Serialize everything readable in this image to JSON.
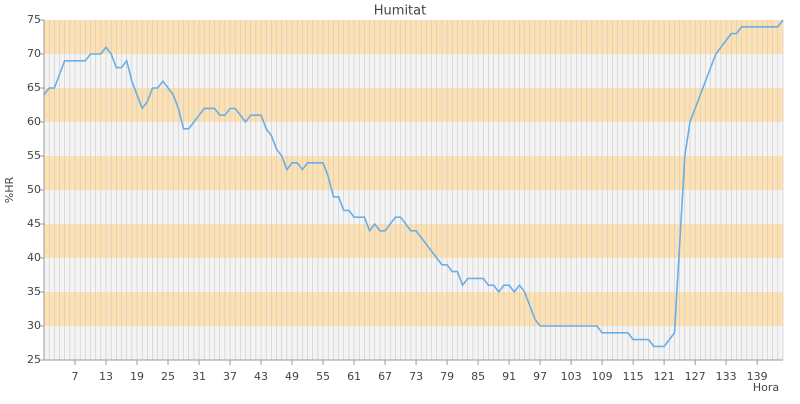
{
  "chart_data": {
    "type": "line",
    "title": "Humitat",
    "x_label": "Hora",
    "y_label": "%HR",
    "x": [
      1,
      2,
      3,
      4,
      5,
      6,
      7,
      8,
      9,
      10,
      11,
      12,
      13,
      14,
      15,
      16,
      17,
      18,
      19,
      20,
      21,
      22,
      23,
      24,
      25,
      26,
      27,
      28,
      29,
      30,
      31,
      32,
      33,
      34,
      35,
      36,
      37,
      38,
      39,
      40,
      41,
      42,
      43,
      44,
      45,
      46,
      47,
      48,
      49,
      50,
      51,
      52,
      53,
      54,
      55,
      56,
      57,
      58,
      59,
      60,
      61,
      62,
      63,
      64,
      65,
      66,
      67,
      68,
      69,
      70,
      71,
      72,
      73,
      74,
      75,
      76,
      77,
      78,
      79,
      80,
      81,
      82,
      83,
      84,
      85,
      86,
      87,
      88,
      89,
      90,
      91,
      92,
      93,
      94,
      95,
      96,
      97,
      98,
      99,
      100,
      101,
      102,
      103,
      104,
      105,
      106,
      107,
      108,
      109,
      110,
      111,
      112,
      113,
      114,
      115,
      116,
      117,
      118,
      119,
      120,
      121,
      122,
      123,
      124,
      125,
      126,
      127,
      128,
      129,
      130,
      131,
      132,
      133,
      134,
      135,
      136,
      137,
      138,
      139,
      140,
      141,
      142,
      143,
      144
    ],
    "series": [
      {
        "name": "%HR",
        "color": "#6aaee8",
        "values": [
          64,
          65,
          65,
          67,
          69,
          69,
          69,
          69,
          69,
          70,
          70,
          70,
          71,
          70,
          68,
          68,
          69,
          66,
          64,
          62,
          63,
          65,
          65,
          66,
          65,
          64,
          62,
          59,
          59,
          60,
          61,
          62,
          62,
          62,
          61,
          61,
          62,
          62,
          61,
          60,
          61,
          61,
          61,
          59,
          58,
          56,
          55,
          53,
          54,
          54,
          53,
          54,
          54,
          54,
          54,
          52,
          49,
          49,
          47,
          47,
          46,
          46,
          46,
          44,
          45,
          44,
          44,
          45,
          46,
          46,
          45,
          44,
          44,
          43,
          42,
          41,
          40,
          39,
          39,
          38,
          38,
          36,
          37,
          37,
          37,
          37,
          36,
          36,
          35,
          36,
          36,
          35,
          36,
          35,
          33,
          31,
          30,
          30,
          30,
          30,
          30,
          30,
          30,
          30,
          30,
          30,
          30,
          30,
          29,
          29,
          29,
          29,
          29,
          29,
          28,
          28,
          28,
          28,
          27,
          27,
          27,
          28,
          29,
          42,
          55,
          60,
          62,
          64,
          66,
          68,
          70,
          71,
          72,
          73,
          73,
          74,
          74,
          74,
          74,
          74,
          74,
          74,
          74,
          75
        ]
      }
    ],
    "xlim": [
      1,
      144
    ],
    "xticks": [
      7,
      13,
      19,
      25,
      31,
      37,
      43,
      49,
      55,
      61,
      67,
      73,
      79,
      85,
      91,
      97,
      103,
      109,
      115,
      121,
      127,
      133,
      139
    ],
    "ylim": [
      25,
      75
    ],
    "yticks": [
      25,
      30,
      35,
      40,
      45,
      50,
      55,
      60,
      65,
      70,
      75
    ],
    "band_colors": [
      "#f4f4f4",
      "#fde1b3"
    ],
    "grid_color": "#c8c8c8",
    "grid": true
  }
}
